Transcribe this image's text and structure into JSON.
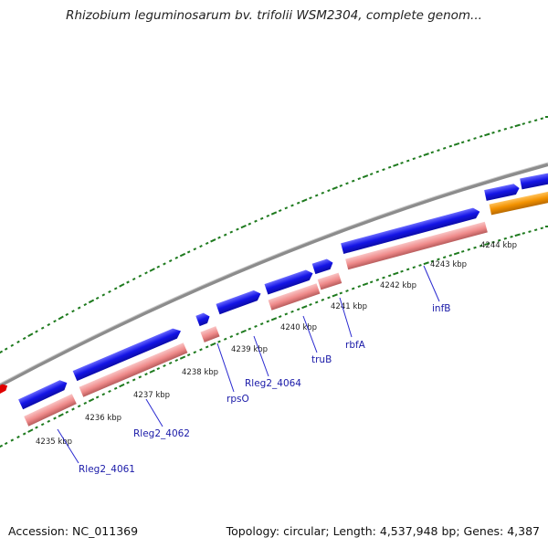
{
  "title": "Rhizobium leguminosarum bv. trifolii WSM2304, complete genom...",
  "footer": {
    "accession": "Accession: NC_011369",
    "summary": "Topology: circular; Length: 4,537,948 bp; Genes: 4,387"
  },
  "ticks": [
    {
      "label": "4235 kbp"
    },
    {
      "label": "4236 kbp"
    },
    {
      "label": "4237 kbp"
    },
    {
      "label": "4238 kbp"
    },
    {
      "label": "4239 kbp"
    },
    {
      "label": "4240 kbp"
    },
    {
      "label": "4241 kbp"
    },
    {
      "label": "4242 kbp"
    },
    {
      "label": "4243 kbp"
    },
    {
      "label": "4244 kbp"
    }
  ],
  "genes": [
    {
      "label": "Rleg2_4061"
    },
    {
      "label": "Rleg2_4062"
    },
    {
      "label": "rpsO"
    },
    {
      "label": "Rleg2_4064"
    },
    {
      "label": "truB"
    },
    {
      "label": "rbfA"
    },
    {
      "label": "infB"
    }
  ],
  "colors": {
    "forward_gene": "#1010e0",
    "forward_gene_light": "#5a5aff",
    "cds": "#f08a8a",
    "cds_light": "#f8b8b8",
    "orange_feature": "#f39200",
    "backbone": "#8c8c8c",
    "tick_mark": "#1e7a1e",
    "marker": "#e00000",
    "gene_label": "#1a1aa8"
  }
}
